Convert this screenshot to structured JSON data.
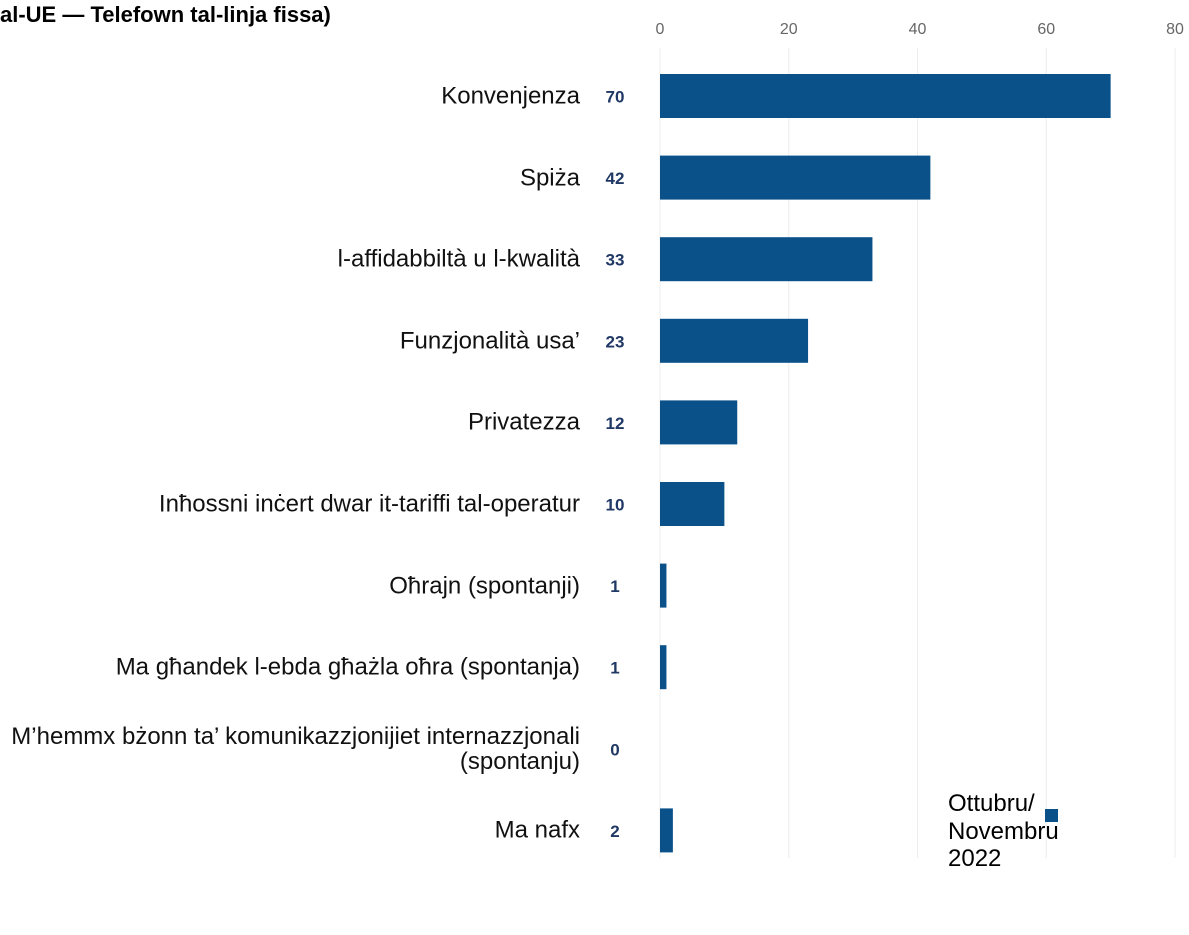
{
  "chart_data": {
    "type": "barh",
    "title": "al-UE — Telefown tal-linja fissa)",
    "categories": [
      "Konvenjenza",
      "Spiża",
      "l-affidabbiltà u l-kwalità",
      "Funzjonalità usa’",
      "Privatezza",
      "Inħossni inċert dwar it-tariffi tal-operatur",
      "Oħrajn (spontanji)",
      "Ma għandek l-ebda għażla oħra (spontanja)",
      "M’hemmx bżonn ta’ komunikazzjonijiet internazzjonali (spontanju)",
      "Ma nafx"
    ],
    "series": [
      {
        "name": "Ottubru/ Novembru 2022",
        "color": "#0a5189",
        "values": [
          70,
          42,
          33,
          23,
          12,
          10,
          1,
          1,
          0,
          2
        ]
      }
    ],
    "xlim": [
      0,
      80
    ],
    "xticks": [
      0,
      20,
      40,
      60,
      80
    ],
    "grid": true
  }
}
